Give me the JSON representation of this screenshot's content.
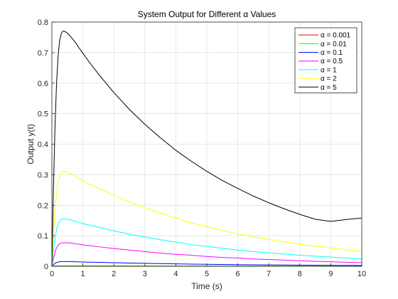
{
  "chart_data": {
    "type": "line",
    "title": "System Output for Different α Values",
    "xlabel": "Time (s)",
    "ylabel": "Output y(t)",
    "xlim": [
      0,
      10
    ],
    "ylim": [
      0,
      0.8
    ],
    "xticks": [
      0,
      1,
      2,
      3,
      4,
      5,
      6,
      7,
      8,
      9,
      10
    ],
    "yticks": [
      0,
      0.1,
      0.2,
      0.3,
      0.4,
      0.5,
      0.6,
      0.7,
      0.8
    ],
    "grid": true,
    "legend_position": "top-right",
    "x": [
      0,
      0.05,
      0.1,
      0.15,
      0.2,
      0.25,
      0.3,
      0.35,
      0.4,
      0.5,
      0.6,
      0.7,
      0.8,
      0.9,
      1.0,
      1.2,
      1.5,
      2,
      2.5,
      3,
      3.5,
      4,
      4.5,
      5,
      5.5,
      6,
      6.5,
      7,
      7.5,
      8,
      8.5,
      9,
      9.5,
      10
    ],
    "series": [
      {
        "name": "α = 0.001",
        "color": "#ff0000",
        "values": [
          0,
          0.0001,
          0.0002,
          0.0002,
          0.0002,
          0.0002,
          0.0002,
          0.0002,
          0.0002,
          0.0002,
          0.0002,
          0.0002,
          0.0002,
          0.0002,
          0.0002,
          0.0002,
          0.0001,
          0.0001,
          0.0001,
          0.0001,
          0.0001,
          0.0001,
          0.0001,
          0.0001,
          0.0001,
          0.0001,
          0.0001,
          0.0001,
          0.0001,
          0.0001,
          0.0001,
          0,
          0,
          0
        ]
      },
      {
        "name": "α = 0.01",
        "color": "#00ff00",
        "values": [
          0,
          0.0005,
          0.0009,
          0.0012,
          0.0013,
          0.0014,
          0.0015,
          0.0015,
          0.0015,
          0.0015,
          0.0015,
          0.0015,
          0.0015,
          0.0015,
          0.0015,
          0.0014,
          0.0014,
          0.0013,
          0.0012,
          0.0011,
          0.001,
          0.0009,
          0.0008,
          0.0008,
          0.0007,
          0.0006,
          0.0006,
          0.0005,
          0.0005,
          0.0004,
          0.0004,
          0.0004,
          0.0003,
          0.0003
        ]
      },
      {
        "name": "α = 0.1",
        "color": "#0000ff",
        "values": [
          0,
          0.0051,
          0.0092,
          0.012,
          0.0138,
          0.0148,
          0.0153,
          0.0155,
          0.0155,
          0.0154,
          0.0152,
          0.0149,
          0.0146,
          0.0143,
          0.014,
          0.0135,
          0.0128,
          0.0116,
          0.0105,
          0.0096,
          0.0087,
          0.0079,
          0.0071,
          0.0065,
          0.0059,
          0.0053,
          0.0048,
          0.0044,
          0.004,
          0.0036,
          0.0033,
          0.003,
          0.0027,
          0.0024
        ]
      },
      {
        "name": "α = 0.5",
        "color": "#ff00ff",
        "values": [
          0,
          0.025,
          0.046,
          0.06,
          0.069,
          0.074,
          0.076,
          0.077,
          0.077,
          0.077,
          0.076,
          0.075,
          0.073,
          0.072,
          0.07,
          0.068,
          0.064,
          0.058,
          0.053,
          0.048,
          0.043,
          0.039,
          0.036,
          0.032,
          0.029,
          0.027,
          0.024,
          0.022,
          0.02,
          0.018,
          0.016,
          0.015,
          0.013,
          0.012
        ]
      },
      {
        "name": "α = 1",
        "color": "#00ffff",
        "values": [
          0,
          0.051,
          0.092,
          0.12,
          0.138,
          0.148,
          0.153,
          0.155,
          0.155,
          0.154,
          0.152,
          0.149,
          0.146,
          0.143,
          0.14,
          0.135,
          0.128,
          0.116,
          0.105,
          0.096,
          0.087,
          0.079,
          0.071,
          0.065,
          0.059,
          0.053,
          0.048,
          0.044,
          0.04,
          0.036,
          0.033,
          0.03,
          0.027,
          0.024
        ]
      },
      {
        "name": "α = 2",
        "color": "#ffff00",
        "values": [
          0,
          0.102,
          0.184,
          0.24,
          0.276,
          0.296,
          0.306,
          0.31,
          0.31,
          0.308,
          0.304,
          0.298,
          0.292,
          0.286,
          0.28,
          0.27,
          0.256,
          0.232,
          0.21,
          0.192,
          0.174,
          0.158,
          0.142,
          0.13,
          0.118,
          0.106,
          0.096,
          0.088,
          0.08,
          0.072,
          0.066,
          0.06,
          0.054,
          0.048
        ]
      },
      {
        "name": "α = 5",
        "color": "#000000",
        "values": [
          0,
          0.254,
          0.455,
          0.597,
          0.688,
          0.739,
          0.761,
          0.77,
          0.77,
          0.764,
          0.753,
          0.741,
          0.727,
          0.712,
          0.698,
          0.67,
          0.63,
          0.569,
          0.514,
          0.465,
          0.421,
          0.38,
          0.344,
          0.311,
          0.281,
          0.255,
          0.23,
          0.208,
          0.188,
          0.17,
          0.154,
          0.147,
          0.153,
          0.158
        ]
      }
    ]
  }
}
